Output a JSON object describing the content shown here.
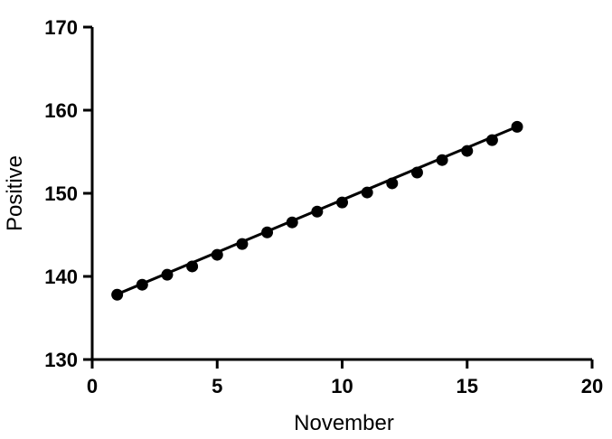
{
  "chart_data": {
    "type": "line",
    "title": "",
    "xlabel": "November",
    "ylabel": "Positive",
    "xlim": [
      0,
      20
    ],
    "ylim": [
      130,
      170
    ],
    "xticks": [
      0,
      5,
      10,
      15,
      20
    ],
    "yticks": [
      130,
      140,
      150,
      160,
      170
    ],
    "xtick_labels": [
      "0",
      "5",
      "10",
      "15",
      "20"
    ],
    "ytick_labels": [
      "130",
      "140",
      "150",
      "160",
      "170"
    ],
    "grid": false,
    "legend": "none",
    "series": [
      {
        "x": [
          1,
          2,
          3,
          4,
          5,
          6,
          7,
          8,
          9,
          10,
          11,
          12,
          13,
          14,
          15,
          16,
          17
        ],
        "y": [
          137.8,
          139.0,
          140.2,
          141.2,
          142.6,
          143.9,
          145.3,
          146.5,
          147.8,
          148.9,
          150.1,
          151.2,
          152.5,
          154.0,
          155.1,
          156.4,
          158.0
        ],
        "trendline": {
          "slope": 1.26,
          "intercept": 136.6
        },
        "color": "#000000",
        "marker": "circle"
      }
    ]
  }
}
